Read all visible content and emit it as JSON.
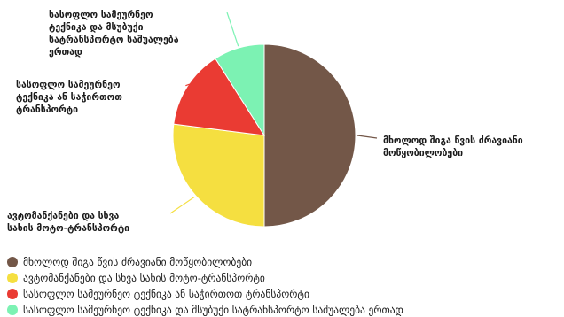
{
  "chart_data": {
    "type": "pie",
    "title": "",
    "labels": [
      "მხოლოდ შიგა წვის ძრავიანი მოწყობილობები",
      "ავტომანქანები და სხვა სახის მოტო-ტრანსპორტი",
      "სასოფლო სამეურნეო ტექნიკა ან საჭირთოთ ტრანსპორტი",
      "სასოფლო სამეურნეო ტექნიკა და მსუბუქი სატრანსპორტო საშუალება ერთად"
    ],
    "values": [
      50,
      27,
      14,
      9
    ],
    "colors": [
      "#735748",
      "#f5df40",
      "#ea3b33",
      "#7cf2b3"
    ],
    "legend_position": "bottom-left",
    "callouts": [
      [
        "მხოლოდ შიგა წვის ძრავიანი",
        "მოწყობილობები"
      ],
      [
        "ავტომანქანები და სხვა",
        "სახის მოტო-ტრანსპორტი"
      ],
      [
        "სასოფლო სამეურნეო",
        "ტექნიკა ან საჭირთოთ",
        "ტრანსპორტი"
      ],
      [
        "სასოფლო სამეურნეო",
        "ტექნიკა და მსუბუქი",
        "სატრანსპორტო საშუალება",
        "ერთად"
      ]
    ]
  }
}
